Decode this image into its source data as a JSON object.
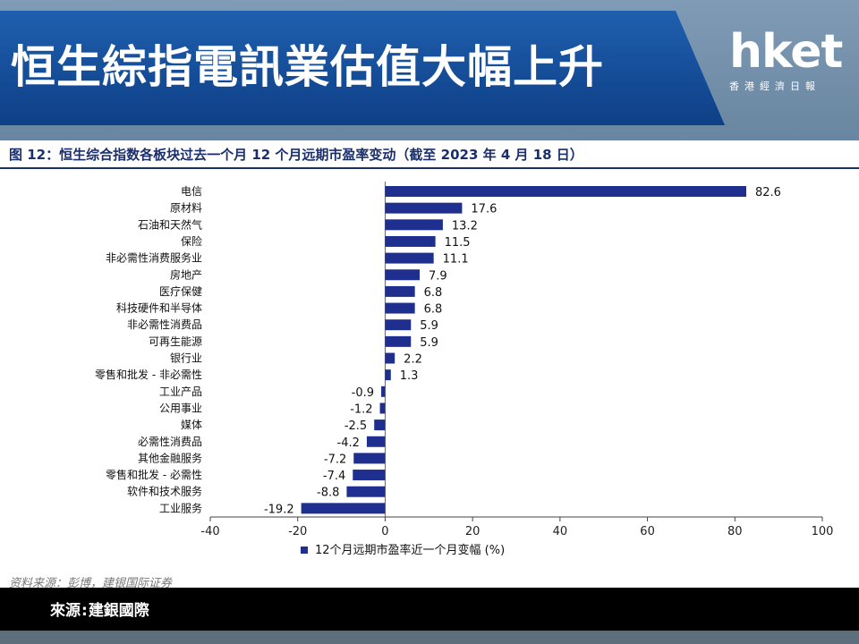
{
  "banner": {
    "title": "恒生綜指電訊業估值大幅上升"
  },
  "logo": {
    "word": "hket",
    "sub": "香港經濟日報"
  },
  "figure": {
    "title": "图 12：恒生综合指数各板块过去一个月 12 个月远期市盈率变动（截至 2023 年 4 月 18 日）",
    "source_note": "资料来源：彭博，建银国际证券"
  },
  "source": {
    "label": "來源",
    "sep": ":",
    "value": "建銀國際"
  },
  "colors": {
    "bar": "#1f2f8f",
    "banner": "#1a55a3",
    "page_bg": "#3d5a75"
  },
  "chart_data": {
    "type": "bar",
    "orientation": "horizontal",
    "categories": [
      "电信",
      "原材料",
      "石油和天然气",
      "保险",
      "非必需性消费服务业",
      "房地产",
      "医疗保健",
      "科技硬件和半导体",
      "非必需性消费品",
      "可再生能源",
      "银行业",
      "零售和批发 - 非必需性",
      "工业产品",
      "公用事业",
      "媒体",
      "必需性消费品",
      "其他金融服务",
      "零售和批发 - 必需性",
      "软件和技术服务",
      "工业服务"
    ],
    "value_labels": [
      "82.6",
      "17.6",
      "13.2",
      "11.5",
      "11.1",
      "7.9",
      "6.8",
      "6.8",
      "5.9",
      "5.9",
      "2.2",
      "1.3",
      "-0.9",
      "-1.2",
      "-2.5",
      "-4.2",
      "-7.2",
      "-7.4",
      "-8.8",
      "-19.2"
    ],
    "series": [
      {
        "name": "12个月远期市盈率近一个月变幅 (%)",
        "values": [
          82.6,
          17.6,
          13.2,
          11.5,
          11.1,
          7.9,
          6.8,
          6.8,
          5.9,
          5.9,
          2.2,
          1.3,
          -0.9,
          -1.2,
          -2.5,
          -4.2,
          -7.2,
          -7.4,
          -8.8,
          -19.2
        ]
      }
    ],
    "xlim": [
      -40,
      100
    ],
    "xticks": [
      "-40",
      "-20",
      "0",
      "20",
      "40",
      "60",
      "80",
      "100"
    ],
    "xtick_values": [
      -40,
      -20,
      0,
      20,
      40,
      60,
      80,
      100
    ],
    "legend": "bottom-center",
    "grid": false
  }
}
